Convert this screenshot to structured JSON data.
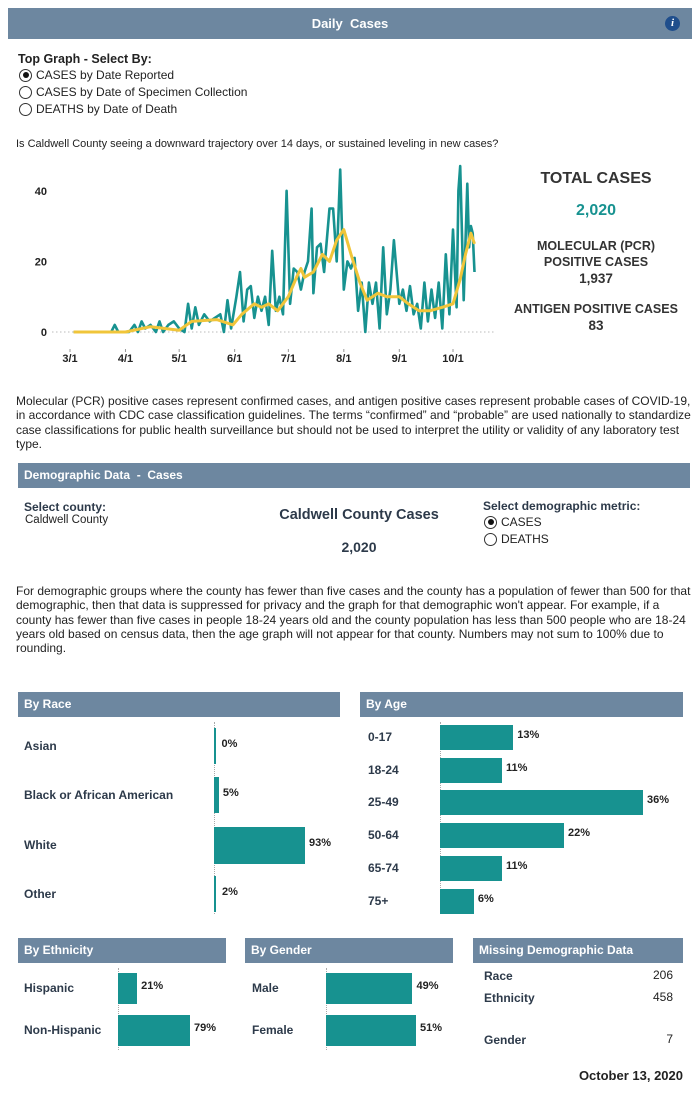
{
  "header": {
    "title": "Daily  Cases",
    "info_icon": "info-icon"
  },
  "top_graph": {
    "label": "Top Graph - Select By:",
    "options": [
      {
        "label": "CASES by Date Reported",
        "selected": true
      },
      {
        "label": "CASES by Date of Specimen Collection",
        "selected": false
      },
      {
        "label": "DEATHS by Date of Death",
        "selected": false
      }
    ]
  },
  "question": "Is Caldwell County seeing a downward trajectory over 14 days, or sustained leveling in new cases?",
  "totals": {
    "total_label": "TOTAL CASES",
    "total_value": "2,020",
    "pcr_label_1": "MOLECULAR (PCR)",
    "pcr_label_2": "POSITIVE CASES",
    "pcr_value": "1,937",
    "antigen_label": "ANTIGEN POSITIVE CASES",
    "antigen_value": "83"
  },
  "note": "Molecular (PCR) positive cases represent confirmed cases, and antigen positive cases represent probable cases of COVID-19, in accordance with CDC case classification guidelines. The terms “confirmed” and “probable” are used nationally to standardize case classifications for public health surveillance but should not be used to interpret the utility or validity of any laboratory test type.",
  "demographic": {
    "header": "Demographic Data  -  Cases",
    "county_label": "Select county:",
    "county_value": "Caldwell County",
    "title": "Caldwell County Cases",
    "count": "2,020",
    "metric_label": "Select demographic metric:",
    "metrics": [
      {
        "label": "CASES",
        "selected": true
      },
      {
        "label": "DEATHS",
        "selected": false
      }
    ]
  },
  "suppression_note": "For demographic groups where the county has fewer than five cases and the county has a population of fewer than 500 for that demographic, then that data is suppressed for privacy and the graph for that demographic won't appear. For example, if a county has fewer than five cases in people 18-24 years old and the county population has less than 500 people who are 18-24 years old based on census data, then the age graph will not appear for that county. Numbers may not sum to 100% due to rounding.",
  "missing": {
    "header": "Missing Demographic Data",
    "rows": [
      {
        "label": "Race",
        "value": "206"
      },
      {
        "label": "Ethnicity",
        "value": "458"
      },
      {
        "label": "Gender",
        "value": "7"
      }
    ]
  },
  "date": "October 13, 2020",
  "colors": {
    "teal": "#179290",
    "yellow": "#f0c53a",
    "header": "#6d87a0"
  },
  "chart_data": [
    {
      "type": "line",
      "title": "",
      "xlabel": "",
      "ylabel": "",
      "ylim": [
        -3,
        47
      ],
      "yticks": [
        0,
        20,
        40
      ],
      "xticks": [
        "3/1",
        "4/1",
        "5/1",
        "6/1",
        "7/1",
        "8/1",
        "9/1",
        "10/1"
      ],
      "grid": "zero line only (dotted)",
      "series": [
        {
          "color": "#179290",
          "x": [
            "3/3",
            "3/6",
            "3/9",
            "3/12",
            "3/15",
            "3/18",
            "3/21",
            "3/24",
            "3/26",
            "3/28",
            "3/31",
            "4/3",
            "4/6",
            "4/8",
            "4/10",
            "4/12",
            "4/15",
            "4/18",
            "4/20",
            "4/22",
            "4/25",
            "4/28",
            "5/1",
            "5/4",
            "5/6",
            "5/8",
            "5/10",
            "5/12",
            "5/15",
            "5/18",
            "5/21",
            "5/24",
            "5/26",
            "5/28",
            "5/30",
            "6/2",
            "6/4",
            "6/6",
            "6/8",
            "6/10",
            "6/12",
            "6/14",
            "6/16",
            "6/18",
            "6/20",
            "6/22",
            "6/24",
            "6/26",
            "6/28",
            "6/30",
            "7/2",
            "7/4",
            "7/6",
            "7/8",
            "7/10",
            "7/12",
            "7/14",
            "7/15",
            "7/17",
            "7/19",
            "7/21",
            "7/24",
            "7/26",
            "7/28",
            "7/30",
            "8/1",
            "8/3",
            "8/5",
            "8/7",
            "8/9",
            "8/11",
            "8/13",
            "8/15",
            "8/17",
            "8/19",
            "8/21",
            "8/23",
            "8/25",
            "8/27",
            "8/29",
            "9/1",
            "9/3",
            "9/5",
            "9/7",
            "9/9",
            "9/11",
            "9/13",
            "9/15",
            "9/17",
            "9/19",
            "9/21",
            "9/23",
            "9/25",
            "9/27",
            "9/29",
            "10/1",
            "10/3",
            "10/4",
            "10/5",
            "10/7",
            "10/9",
            "10/10",
            "10/11",
            "10/12",
            "10/13"
          ],
          "y": [
            0,
            0,
            0,
            0,
            0,
            0,
            0,
            0,
            2,
            0,
            0,
            0,
            2,
            0,
            3,
            1,
            2,
            0,
            3,
            0,
            2,
            3,
            1,
            0,
            8,
            1,
            7,
            2,
            5,
            3,
            4,
            5,
            0,
            9,
            1,
            10,
            17,
            3,
            12,
            13,
            4,
            10,
            6,
            10,
            2,
            23,
            6,
            10,
            5,
            40,
            8,
            18,
            17,
            12,
            17,
            20,
            35,
            11,
            24,
            25,
            17,
            35,
            35,
            20,
            46,
            12,
            20,
            18,
            21,
            6,
            14,
            0,
            14,
            8,
            14,
            1,
            24,
            5,
            12,
            26,
            8,
            12,
            6,
            13,
            5,
            8,
            1,
            14,
            3,
            12,
            4,
            14,
            1,
            22,
            5,
            29,
            7,
            40,
            47,
            9,
            42,
            24,
            30,
            28,
            17
          ]
        },
        {
          "color": "#f0c53a",
          "x": [
            "3/3",
            "3/20",
            "4/1",
            "4/15",
            "5/1",
            "5/8",
            "5/22",
            "5/31",
            "6/5",
            "6/12",
            "6/16",
            "6/20",
            "6/25",
            "7/1",
            "7/6",
            "7/8",
            "7/10",
            "7/15",
            "7/20",
            "7/24",
            "7/28",
            "8/1",
            "8/5",
            "8/10",
            "8/14",
            "8/20",
            "8/25",
            "9/1",
            "9/6",
            "9/12",
            "9/18",
            "9/25",
            "10/1",
            "10/5",
            "10/8",
            "10/11",
            "10/13"
          ],
          "y": [
            0,
            0,
            0,
            1.5,
            0.5,
            3,
            3.5,
            2,
            5,
            8,
            7,
            8,
            6,
            10,
            16,
            18,
            15.5,
            17,
            22,
            20,
            26,
            29,
            22,
            14,
            9,
            11,
            10,
            10,
            8,
            6,
            6,
            7,
            8,
            15,
            22,
            28,
            25
          ]
        }
      ]
    },
    {
      "type": "bar",
      "title": "By Race",
      "categories": [
        "Asian",
        "Black or African American",
        "White",
        "Other"
      ],
      "values": [
        0,
        5,
        93,
        2
      ],
      "labels": [
        "0%",
        "5%",
        "93%",
        "2%"
      ]
    },
    {
      "type": "bar",
      "title": "By Age",
      "categories": [
        "0-17",
        "18-24",
        "25-49",
        "50-64",
        "65-74",
        "75+"
      ],
      "values": [
        13,
        11,
        36,
        22,
        11,
        6
      ],
      "labels": [
        "13%",
        "11%",
        "36%",
        "22%",
        "11%",
        "6%"
      ]
    },
    {
      "type": "bar",
      "title": "By Ethnicity",
      "categories": [
        "Hispanic",
        "Non-Hispanic"
      ],
      "values": [
        21,
        79
      ],
      "labels": [
        "21%",
        "79%"
      ]
    },
    {
      "type": "bar",
      "title": "By Gender",
      "categories": [
        "Male",
        "Female"
      ],
      "values": [
        49,
        51
      ],
      "labels": [
        "49%",
        "51%"
      ]
    }
  ]
}
